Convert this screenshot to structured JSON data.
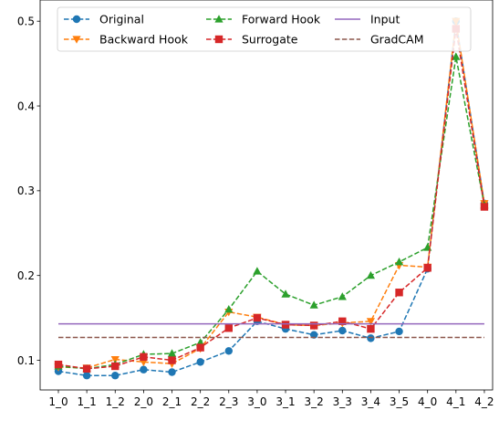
{
  "chart_data": {
    "type": "line",
    "categories": [
      "1_0",
      "1_1",
      "1_2",
      "2_0",
      "2_1",
      "2_2",
      "2_3",
      "3_0",
      "3_1",
      "3_2",
      "3_3",
      "3_4",
      "3_5",
      "4_0",
      "4_1",
      "4_2"
    ],
    "ylim": [
      0.065,
      0.525
    ],
    "yticks": [
      0.1,
      0.2,
      0.3,
      0.4,
      0.5
    ],
    "ytick_labels": [
      "0.1",
      "0.2",
      "0.3",
      "0.4",
      "0.5"
    ],
    "legend": {
      "placement": "top-center",
      "columns": 3
    },
    "series": [
      {
        "name": "Original",
        "color": "#1f77b4",
        "style": "dashed",
        "marker": "circle",
        "values": [
          0.087,
          0.082,
          0.082,
          0.089,
          0.086,
          0.098,
          0.111,
          0.146,
          0.137,
          0.13,
          0.135,
          0.126,
          0.134,
          0.208,
          0.5,
          0.285
        ]
      },
      {
        "name": "Backward Hook",
        "color": "#ff7f0e",
        "style": "dashed",
        "marker": "triangle-down",
        "values": [
          0.092,
          0.091,
          0.101,
          0.098,
          0.096,
          0.114,
          0.157,
          0.151,
          0.142,
          0.141,
          0.144,
          0.146,
          0.212,
          0.21,
          0.5,
          0.285
        ]
      },
      {
        "name": "Forward Hook",
        "color": "#2ca02c",
        "style": "dashed",
        "marker": "triangle-up",
        "values": [
          0.093,
          0.09,
          0.095,
          0.107,
          0.108,
          0.121,
          0.16,
          0.205,
          0.178,
          0.165,
          0.175,
          0.2,
          0.216,
          0.233,
          0.458,
          0.283
        ]
      },
      {
        "name": "Surrogate",
        "color": "#d62728",
        "style": "dashed",
        "marker": "square",
        "values": [
          0.095,
          0.09,
          0.093,
          0.104,
          0.1,
          0.115,
          0.138,
          0.15,
          0.142,
          0.141,
          0.146,
          0.137,
          0.18,
          0.209,
          0.491,
          0.281
        ]
      },
      {
        "name": "Input",
        "color": "#9467bd",
        "style": "solid",
        "marker": "none",
        "values": [
          0.143,
          0.143,
          0.143,
          0.143,
          0.143,
          0.143,
          0.143,
          0.143,
          0.143,
          0.143,
          0.143,
          0.143,
          0.143,
          0.143,
          0.143,
          0.143
        ]
      },
      {
        "name": "GradCAM",
        "color": "#8c564b",
        "style": "dashed",
        "marker": "none",
        "values": [
          0.127,
          0.127,
          0.127,
          0.127,
          0.127,
          0.127,
          0.127,
          0.127,
          0.127,
          0.127,
          0.127,
          0.127,
          0.127,
          0.127,
          0.127,
          0.127
        ]
      }
    ]
  }
}
